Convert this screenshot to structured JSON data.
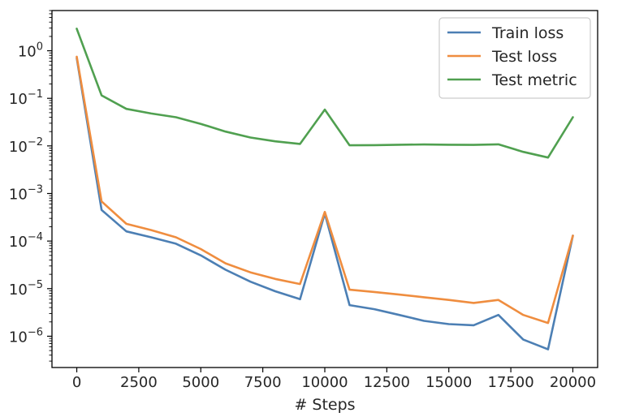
{
  "chart_data": {
    "type": "line",
    "title": "",
    "xlabel": "# Steps",
    "ylabel": "",
    "yscale": "log",
    "xlim": [
      -1000,
      21000
    ],
    "ylim": [
      2.2e-07,
      7.0
    ],
    "grid": false,
    "legend_position": "top-right",
    "x_ticks": [
      0,
      2500,
      5000,
      7500,
      10000,
      12500,
      15000,
      17500,
      20000
    ],
    "x_tick_labels": [
      "0",
      "2500",
      "5000",
      "7500",
      "10000",
      "12500",
      "15000",
      "17500",
      "20000"
    ],
    "y_ticks": [
      1,
      0.1,
      0.01,
      0.001,
      0.0001,
      1e-05,
      1e-06
    ],
    "y_tick_labels": [
      {
        "base": "10",
        "exp": "0"
      },
      {
        "base": "10",
        "exp": "−1"
      },
      {
        "base": "10",
        "exp": "−2"
      },
      {
        "base": "10",
        "exp": "−3"
      },
      {
        "base": "10",
        "exp": "−4"
      },
      {
        "base": "10",
        "exp": "−5"
      },
      {
        "base": "10",
        "exp": "−6"
      }
    ],
    "x": [
      0,
      1000,
      2000,
      3000,
      4000,
      5000,
      6000,
      7000,
      8000,
      9000,
      10000,
      11000,
      12000,
      13000,
      14000,
      15000,
      16000,
      17000,
      18000,
      19000,
      20000
    ],
    "series": [
      {
        "name": "Train loss",
        "color": "#4c7fb4",
        "values": [
          0.7,
          0.00045,
          0.00016,
          0.00012,
          8.8e-05,
          5e-05,
          2.5e-05,
          1.4e-05,
          8.8e-06,
          6e-06,
          0.00038,
          4.5e-06,
          3.7e-06,
          2.8e-06,
          2.1e-06,
          1.8e-06,
          1.7e-06,
          2.8e-06,
          8.5e-07,
          5.3e-07,
          0.00013
        ]
      },
      {
        "name": "Test loss",
        "color": "#ef8d3f",
        "values": [
          0.75,
          0.00068,
          0.00023,
          0.00017,
          0.00012,
          6.8e-05,
          3.4e-05,
          2.2e-05,
          1.6e-05,
          1.25e-05,
          0.00041,
          9.5e-06,
          8.5e-06,
          7.5e-06,
          6.6e-06,
          5.8e-06,
          5e-06,
          5.8e-06,
          2.8e-06,
          1.9e-06,
          0.00013
        ]
      },
      {
        "name": "Test metric",
        "color": "#50a050",
        "values": [
          2.9,
          0.115,
          0.06,
          0.048,
          0.04,
          0.029,
          0.02,
          0.015,
          0.0125,
          0.011,
          0.058,
          0.0103,
          0.0104,
          0.0106,
          0.0107,
          0.0106,
          0.0105,
          0.0108,
          0.0075,
          0.0057,
          0.04
        ]
      }
    ]
  }
}
